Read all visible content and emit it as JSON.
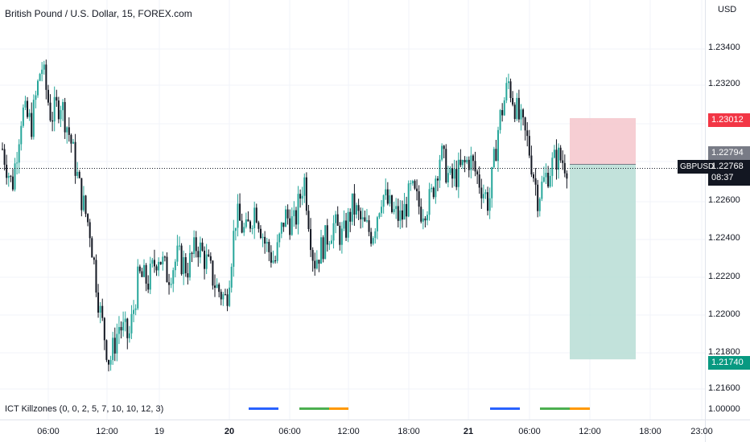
{
  "header": {
    "title": "British Pound / U.S. Dollar, 15, FOREX.com"
  },
  "indicator": {
    "label": "ICT Killzones (0, 0, 2, 5, 7, 10, 10, 12, 3)"
  },
  "price_scale": {
    "currency": "USD",
    "ticks": [
      "1.23400",
      "1.23200",
      "1.22600",
      "1.22400",
      "1.22200",
      "1.22000",
      "1.21800",
      "1.21600",
      "1.00000"
    ]
  },
  "time_scale": {
    "ticks": [
      "06:00",
      "12:00",
      "19",
      "20",
      "06:00",
      "12:00",
      "18:00",
      "21",
      "06:00",
      "12:00",
      "18:00",
      "23:00"
    ]
  },
  "markers": {
    "stop_loss": "1.23012",
    "prev_close": "1.22794",
    "current_price": "1.22768",
    "countdown": "08:37",
    "take_profit": "1.21740",
    "symbol": "GBPUSD"
  },
  "colors": {
    "up": "#26a69a",
    "down": "#131722",
    "stop_zone": "#f5c6cb",
    "target_zone": "#b7ddd5",
    "stop_badge": "#f23645",
    "target_badge": "#089981",
    "prev_badge": "#787b86",
    "current_badge": "#131722",
    "killzone_blue": "#2962ff",
    "killzone_green": "#4caf50",
    "killzone_orange": "#ff9800"
  },
  "chart_data": {
    "type": "candlestick",
    "symbol": "GBPUSD",
    "timeframe": "15",
    "ylim": [
      1.2155,
      1.2355
    ],
    "close_path": [
      1.2285,
      1.2265,
      1.2305,
      1.2298,
      1.233,
      1.2302,
      1.231,
      1.229,
      1.2262,
      1.2242,
      1.22,
      1.2172,
      1.2192,
      1.2185,
      1.2218,
      1.2215,
      1.223,
      1.2218,
      1.2228,
      1.2222,
      1.2235,
      1.2225,
      1.2212,
      1.2205,
      1.225,
      1.224,
      1.2255,
      1.2235,
      1.2225,
      1.225,
      1.2245,
      1.227,
      1.2225,
      1.2235,
      1.2245,
      1.2238,
      1.2255,
      1.2245,
      1.224,
      1.2262,
      1.2252,
      1.2248,
      1.2263,
      1.2253,
      1.2258,
      1.2283,
      1.2268,
      1.2273,
      1.228,
      1.2268,
      1.2256,
      1.2298,
      1.232,
      1.2302,
      1.2288,
      1.226,
      1.2272,
      1.2281,
      1.2277
    ],
    "killzones": [
      {
        "name": "killzone-1",
        "color": "blue"
      },
      {
        "name": "killzone-2",
        "color": "green"
      },
      {
        "name": "killzone-3",
        "color": "orange"
      },
      {
        "name": "killzone-4",
        "color": "blue"
      },
      {
        "name": "killzone-5",
        "color": "green"
      },
      {
        "name": "killzone-6",
        "color": "orange"
      }
    ],
    "position": {
      "entry": 1.22768,
      "stop": 1.23012,
      "target": 1.2174
    }
  }
}
